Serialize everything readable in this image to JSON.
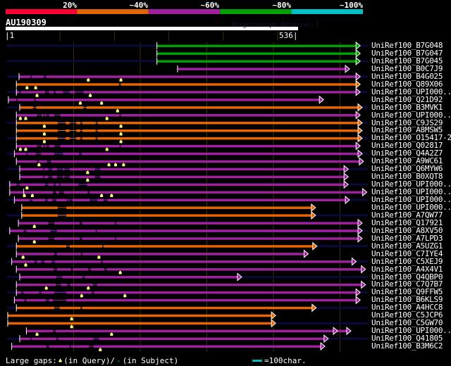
{
  "header": {
    "scale_labels": [
      "20%",
      "~40%",
      "~60%",
      "~80%",
      "~100%"
    ],
    "scale_colors": [
      "#ff0033",
      "#e06400",
      "#a020a0",
      "#00a000",
      "#00c0c8"
    ],
    "query_name": "AU190309",
    "watermark": "AlignView.pm Beta rel.7",
    "ruler_start": "|1",
    "ruler_end": "536|"
  },
  "colors": {
    "G": "#00a000",
    "O": "#e86400",
    "P": "#a020a0",
    "navy": "#0a0a3a",
    "grid": "#333300",
    "gapmark": "#ffff88"
  },
  "rows": [
    {
      "label": "UniRef100_B7G048",
      "c": "G",
      "s": 225,
      "e": 524,
      "navy": true,
      "gaps": [],
      "q": []
    },
    {
      "label": "UniRef100_B7G047",
      "c": "G",
      "s": 225,
      "e": 524,
      "navy": false,
      "gaps": [],
      "q": []
    },
    {
      "label": "UniRef100_B7G045",
      "c": "G",
      "s": 225,
      "e": 524,
      "navy": true,
      "gaps": [],
      "q": []
    },
    {
      "label": "UniRef100_B0C7J9",
      "c": "P",
      "s": 256,
      "e": 508,
      "navy": false,
      "gaps": [],
      "q": []
    },
    {
      "label": "UniRef100_B4G025",
      "c": "P",
      "s": 18,
      "e": 524,
      "navy": true,
      "gaps": [
        [
          35,
          37
        ],
        [
          55,
          59
        ]
      ],
      "q": [
        122,
        171
      ]
    },
    {
      "label": "UniRef100_Q89X06",
      "c": "O",
      "s": 14,
      "e": 524,
      "navy": false,
      "gaps": [
        [
          168,
          171
        ]
      ],
      "q": [
        30,
        43
      ]
    },
    {
      "label": "UniRef100_UPI000..",
      "c": "P",
      "s": 14,
      "e": 524,
      "navy": true,
      "gaps": [
        [
          18,
          21
        ],
        [
          57,
          63
        ],
        [
          70,
          73
        ],
        [
          84,
          94
        ],
        [
          102,
          115
        ]
      ],
      "q": [
        45,
        125
      ]
    },
    {
      "label": "UniRef100_Q21D92",
      "c": "P",
      "s": 2,
      "e": 469,
      "navy": false,
      "gaps": [
        [
          14,
          16
        ],
        [
          41,
          43
        ]
      ],
      "q": [
        110,
        142
      ]
    },
    {
      "label": "UniRef100_B3MVK1",
      "c": "O",
      "s": 19,
      "e": 527,
      "navy": true,
      "gaps": [
        [
          39,
          44
        ],
        [
          115,
          119
        ]
      ],
      "q": [
        166
      ]
    },
    {
      "label": "UniRef100_UPI000..",
      "c": "P",
      "s": 14,
      "e": 524,
      "navy": false,
      "gaps": [
        [
          45,
          52
        ],
        [
          55,
          57
        ],
        [
          59,
          63
        ],
        [
          71,
          80
        ],
        [
          169,
          171
        ]
      ],
      "q": [
        20,
        28,
        150
      ]
    },
    {
      "label": "UniRef100_C9JS29",
      "c": "O",
      "s": 14,
      "e": 527,
      "navy": true,
      "gaps": [
        [
          76,
          88
        ],
        [
          94,
          104
        ],
        [
          110,
          113
        ],
        [
          133,
          136
        ]
      ],
      "q": [
        56,
        171
      ]
    },
    {
      "label": "UniRef100_A8MSW5",
      "c": "O",
      "s": 14,
      "e": 527,
      "navy": false,
      "gaps": [
        [
          76,
          88
        ],
        [
          94,
          104
        ],
        [
          110,
          113
        ],
        [
          133,
          136
        ]
      ],
      "q": [
        56,
        171
      ]
    },
    {
      "label": "UniRef100_O15417-2",
      "c": "O",
      "s": 14,
      "e": 527,
      "navy": true,
      "gaps": [
        [
          76,
          88
        ],
        [
          94,
          104
        ],
        [
          110,
          113
        ],
        [
          133,
          136
        ]
      ],
      "q": [
        56,
        171
      ]
    },
    {
      "label": "UniRef100_Q02817",
      "c": "P",
      "s": 14,
      "e": 524,
      "navy": false,
      "gaps": [
        [
          45,
          52
        ],
        [
          55,
          57
        ],
        [
          59,
          63
        ],
        [
          71,
          80
        ],
        [
          169,
          171
        ]
      ],
      "q": [
        20,
        28,
        150
      ]
    },
    {
      "label": "UniRef100_Q4A2Z7",
      "c": "P",
      "s": 11,
      "e": 527,
      "navy": true,
      "gaps": [
        [
          29,
          31
        ],
        [
          43,
          51
        ],
        [
          71,
          84
        ],
        [
          108,
          112
        ]
      ],
      "q": []
    },
    {
      "label": "UniRef100_A9WC61",
      "c": "P",
      "s": 14,
      "e": 529,
      "navy": false,
      "gaps": [
        [
          45,
          48
        ],
        [
          60,
          66
        ]
      ],
      "q": [
        48,
        153,
        163,
        175
      ]
    },
    {
      "label": "UniRef100_Q6MYW6",
      "c": "P",
      "s": 19,
      "e": 506,
      "navy": true,
      "gaps": [
        [
          54,
          56
        ],
        [
          62,
          68
        ],
        [
          75,
          84
        ],
        [
          86,
          94
        ],
        [
          132,
          140
        ]
      ],
      "q": [
        121
      ]
    },
    {
      "label": "UniRef100_B0XQT8",
      "c": "P",
      "s": 19,
      "e": 506,
      "navy": false,
      "gaps": [
        [
          54,
          56
        ],
        [
          62,
          68
        ],
        [
          75,
          84
        ],
        [
          86,
          94
        ],
        [
          132,
          140
        ]
      ],
      "q": [
        121
      ]
    },
    {
      "label": "UniRef100_UPI000..",
      "c": "P",
      "s": 4,
      "e": 506,
      "navy": true,
      "gaps": [
        [
          14,
          19
        ],
        [
          57,
          62
        ],
        [
          70,
          73
        ],
        [
          78,
          80
        ],
        [
          107,
          120
        ]
      ],
      "q": [
        30
      ]
    },
    {
      "label": "UniRef100_UPI000..",
      "c": "P",
      "s": 4,
      "e": 534,
      "navy": false,
      "tick2": 25,
      "gaps": [
        [
          69,
          74
        ],
        [
          78,
          85
        ],
        [
          121,
          124
        ]
      ],
      "q": [
        26,
        38,
        142,
        157
      ]
    },
    {
      "label": "UniRef100_UPI000..",
      "c": "P",
      "s": 11,
      "e": 508,
      "navy": true,
      "gaps": [
        [
          34,
          38
        ],
        [
          57,
          61
        ],
        [
          68,
          74
        ],
        [
          90,
          92
        ],
        [
          93,
          98
        ],
        [
          124,
          136
        ],
        [
          145,
          151
        ]
      ],
      "q": []
    },
    {
      "label": "UniRef100_UPI000..",
      "c": "O",
      "s": 22,
      "e": 457,
      "navy": false,
      "gaps": [
        [
          76,
          89
        ]
      ],
      "q": []
    },
    {
      "label": "UniRef100_A7QW77",
      "c": "O",
      "s": 22,
      "e": 457,
      "navy": true,
      "gaps": [
        [
          76,
          89
        ]
      ],
      "q": []
    },
    {
      "label": "UniRef100_Q17921",
      "c": "P",
      "s": 17,
      "e": 527,
      "navy": false,
      "gaps": [
        [
          62,
          71
        ],
        [
          109,
          113
        ],
        [
          162,
          164
        ]
      ],
      "q": [
        41
      ]
    },
    {
      "label": "UniRef100_A8XV50",
      "c": "P",
      "s": 4,
      "e": 527,
      "navy": true,
      "gaps": [
        [
          25,
          29
        ],
        [
          65,
          75
        ],
        [
          133,
          135
        ]
      ],
      "q": []
    },
    {
      "label": "UniRef100_A7LPD3",
      "c": "P",
      "s": 17,
      "e": 527,
      "navy": false,
      "gaps": [
        [
          62,
          71
        ],
        [
          109,
          113
        ],
        [
          162,
          164
        ]
      ],
      "q": [
        41
      ]
    },
    {
      "label": "UniRef100_A5UZG1",
      "c": "O",
      "s": 14,
      "e": 459,
      "navy": true,
      "gaps": [
        [
          89,
          94
        ],
        [
          143,
          145
        ]
      ],
      "q": []
    },
    {
      "label": "UniRef100_C7IYE4",
      "c": "P",
      "s": 14,
      "e": 446,
      "navy": false,
      "gaps": [
        [
          71,
          75
        ],
        [
          111,
          113
        ]
      ],
      "q": [
        24,
        138
      ]
    },
    {
      "label": "UniRef100_C5XEJ9",
      "c": "P",
      "s": 7,
      "e": 518,
      "navy": true,
      "gaps": [
        [
          41,
          45
        ],
        [
          51,
          56
        ],
        [
          67,
          72
        ],
        [
          141,
          144
        ]
      ],
      "q": [
        28
      ]
    },
    {
      "label": "UniRef100_A4X4V1",
      "c": "P",
      "s": 14,
      "e": 532,
      "navy": false,
      "gaps": [
        [
          70,
          75
        ],
        [
          96,
          99
        ],
        [
          122,
          126
        ],
        [
          146,
          150
        ]
      ],
      "q": [
        170
      ]
    },
    {
      "label": "UniRef100_Q4QBP0",
      "c": "P",
      "s": 19,
      "e": 346,
      "navy": true,
      "gaps": [
        [
          74,
          83
        ],
        [
          113,
          117
        ]
      ],
      "q": []
    },
    {
      "label": "UniRef100_C7Q7B7",
      "c": "P",
      "s": 14,
      "e": 532,
      "navy": false,
      "gaps": [
        [
          73,
          81
        ],
        [
          90,
          95
        ],
        [
          129,
          135
        ]
      ],
      "q": [
        59,
        122
      ]
    },
    {
      "label": "UniRef100_Q9FFW5",
      "c": "P",
      "s": 14,
      "e": 524,
      "navy": true,
      "gaps": [
        [
          21,
          25
        ],
        [
          48,
          52
        ],
        [
          71,
          89
        ],
        [
          127,
          131
        ]
      ],
      "q": [
        112,
        177
      ]
    },
    {
      "label": "UniRef100_B6KLS9",
      "c": "P",
      "s": 11,
      "e": 524,
      "navy": false,
      "gaps": [
        [
          26,
          29
        ],
        [
          58,
          63
        ],
        [
          69,
          89
        ]
      ],
      "q": []
    },
    {
      "label": "UniRef100_A4HCC8",
      "c": "O",
      "s": 14,
      "e": 458,
      "navy": true,
      "gaps": [
        [
          71,
          79
        ],
        [
          110,
          113
        ]
      ],
      "q": []
    },
    {
      "label": "UniRef100_C5JCP6",
      "c": "O",
      "s": 1,
      "e": 397,
      "navy": false,
      "gaps": [],
      "q": [
        97
      ]
    },
    {
      "label": "UniRef100_C5GW70",
      "c": "O",
      "s": 1,
      "e": 397,
      "navy": true,
      "gaps": [],
      "q": [
        97
      ]
    },
    {
      "label": "UniRef100_UPI000..",
      "c": "P",
      "s": 29,
      "e": 490,
      "navy": false,
      "e2": 510,
      "gaps": [
        [
          69,
          73
        ]
      ],
      "q": [
        45,
        157
      ]
    },
    {
      "label": "UniRef100_Q41805",
      "c": "P",
      "s": 19,
      "e": 476,
      "navy": true,
      "gaps": [
        [
          35,
          37
        ],
        [
          74,
          77
        ],
        [
          130,
          138
        ]
      ],
      "q": []
    },
    {
      "label": "UniRef100_B3M6C2",
      "c": "P",
      "s": 7,
      "e": 471,
      "navy": false,
      "gaps": [
        [
          59,
          63
        ],
        [
          94,
          96
        ],
        [
          123,
          130
        ]
      ],
      "q": [
        140
      ]
    }
  ],
  "legend": {
    "gaps_label": "Large gaps:",
    "query_text": "(in Query)/",
    "subject_text": "(in Subject)",
    "scale_text": "=100char."
  }
}
